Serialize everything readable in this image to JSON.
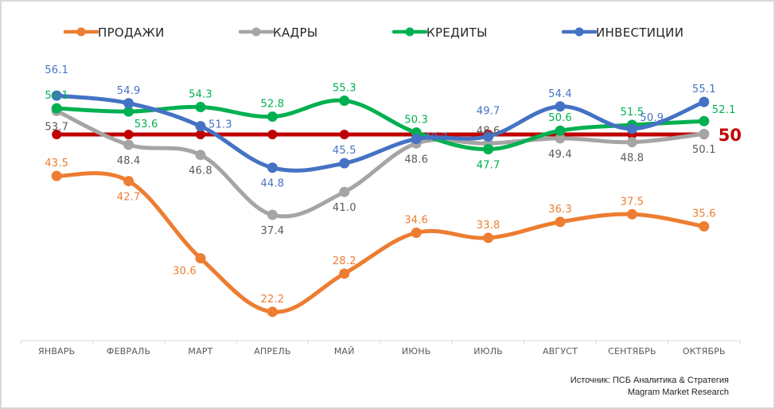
{
  "chart_data": {
    "type": "line",
    "title": "",
    "xlabel": "",
    "ylabel": "",
    "ylim": [
      17.7,
      63.6
    ],
    "grid": false,
    "legend_position": "top",
    "categories": [
      "ЯНВАРЬ",
      "ФЕВРАЛЬ",
      "МАРТ",
      "АПРЕЛЬ",
      "МАЙ",
      "ИЮНЬ",
      "ИЮЛЬ",
      "АВГУСТ",
      "СЕНТЯБРЬ",
      "ОКТЯБРЬ"
    ],
    "series": [
      {
        "name": "ПРОДАЖИ",
        "color": "#ED7D31",
        "values": [
          43.5,
          42.7,
          30.6,
          22.2,
          28.2,
          34.6,
          33.8,
          36.3,
          37.5,
          35.6
        ],
        "label_pos": [
          "above",
          "below",
          "left-below",
          "above",
          "above",
          "above",
          "above",
          "above",
          "above",
          "above"
        ]
      },
      {
        "name": "КАДРЫ",
        "color": "#A5A5A5",
        "label_color": "#595959",
        "values": [
          53.7,
          48.4,
          46.8,
          37.4,
          41.0,
          48.6,
          48.6,
          49.4,
          48.8,
          50.1
        ],
        "label_pos": [
          "below",
          "below",
          "below",
          "below",
          "below",
          "below",
          "above",
          "below",
          "below",
          "below"
        ]
      },
      {
        "name": "КРЕДИТЫ",
        "color": "#00B050",
        "values": [
          54.1,
          53.6,
          54.3,
          52.8,
          55.3,
          50.3,
          47.7,
          50.6,
          51.5,
          52.1
        ],
        "label_pos": [
          "above",
          "below-right",
          "above",
          "above",
          "above",
          "above",
          "below",
          "above",
          "above",
          "above-right"
        ]
      },
      {
        "name": "ИНВЕСТИЦИИ",
        "color": "#4472C4",
        "values": [
          56.1,
          54.9,
          51.3,
          44.8,
          45.5,
          49.3,
          49.7,
          54.4,
          50.9,
          55.1
        ],
        "label_pos": [
          "above-high",
          "above",
          "right",
          "below",
          "above",
          "right",
          "above-high",
          "above",
          "above-right",
          "above"
        ]
      }
    ],
    "reference_line": {
      "value": 50,
      "label": "50",
      "color": "#C00000"
    }
  },
  "source": {
    "line1": "Источник: ПСБ Аналитика & Стратегия",
    "line2": "Magram Market Research"
  }
}
